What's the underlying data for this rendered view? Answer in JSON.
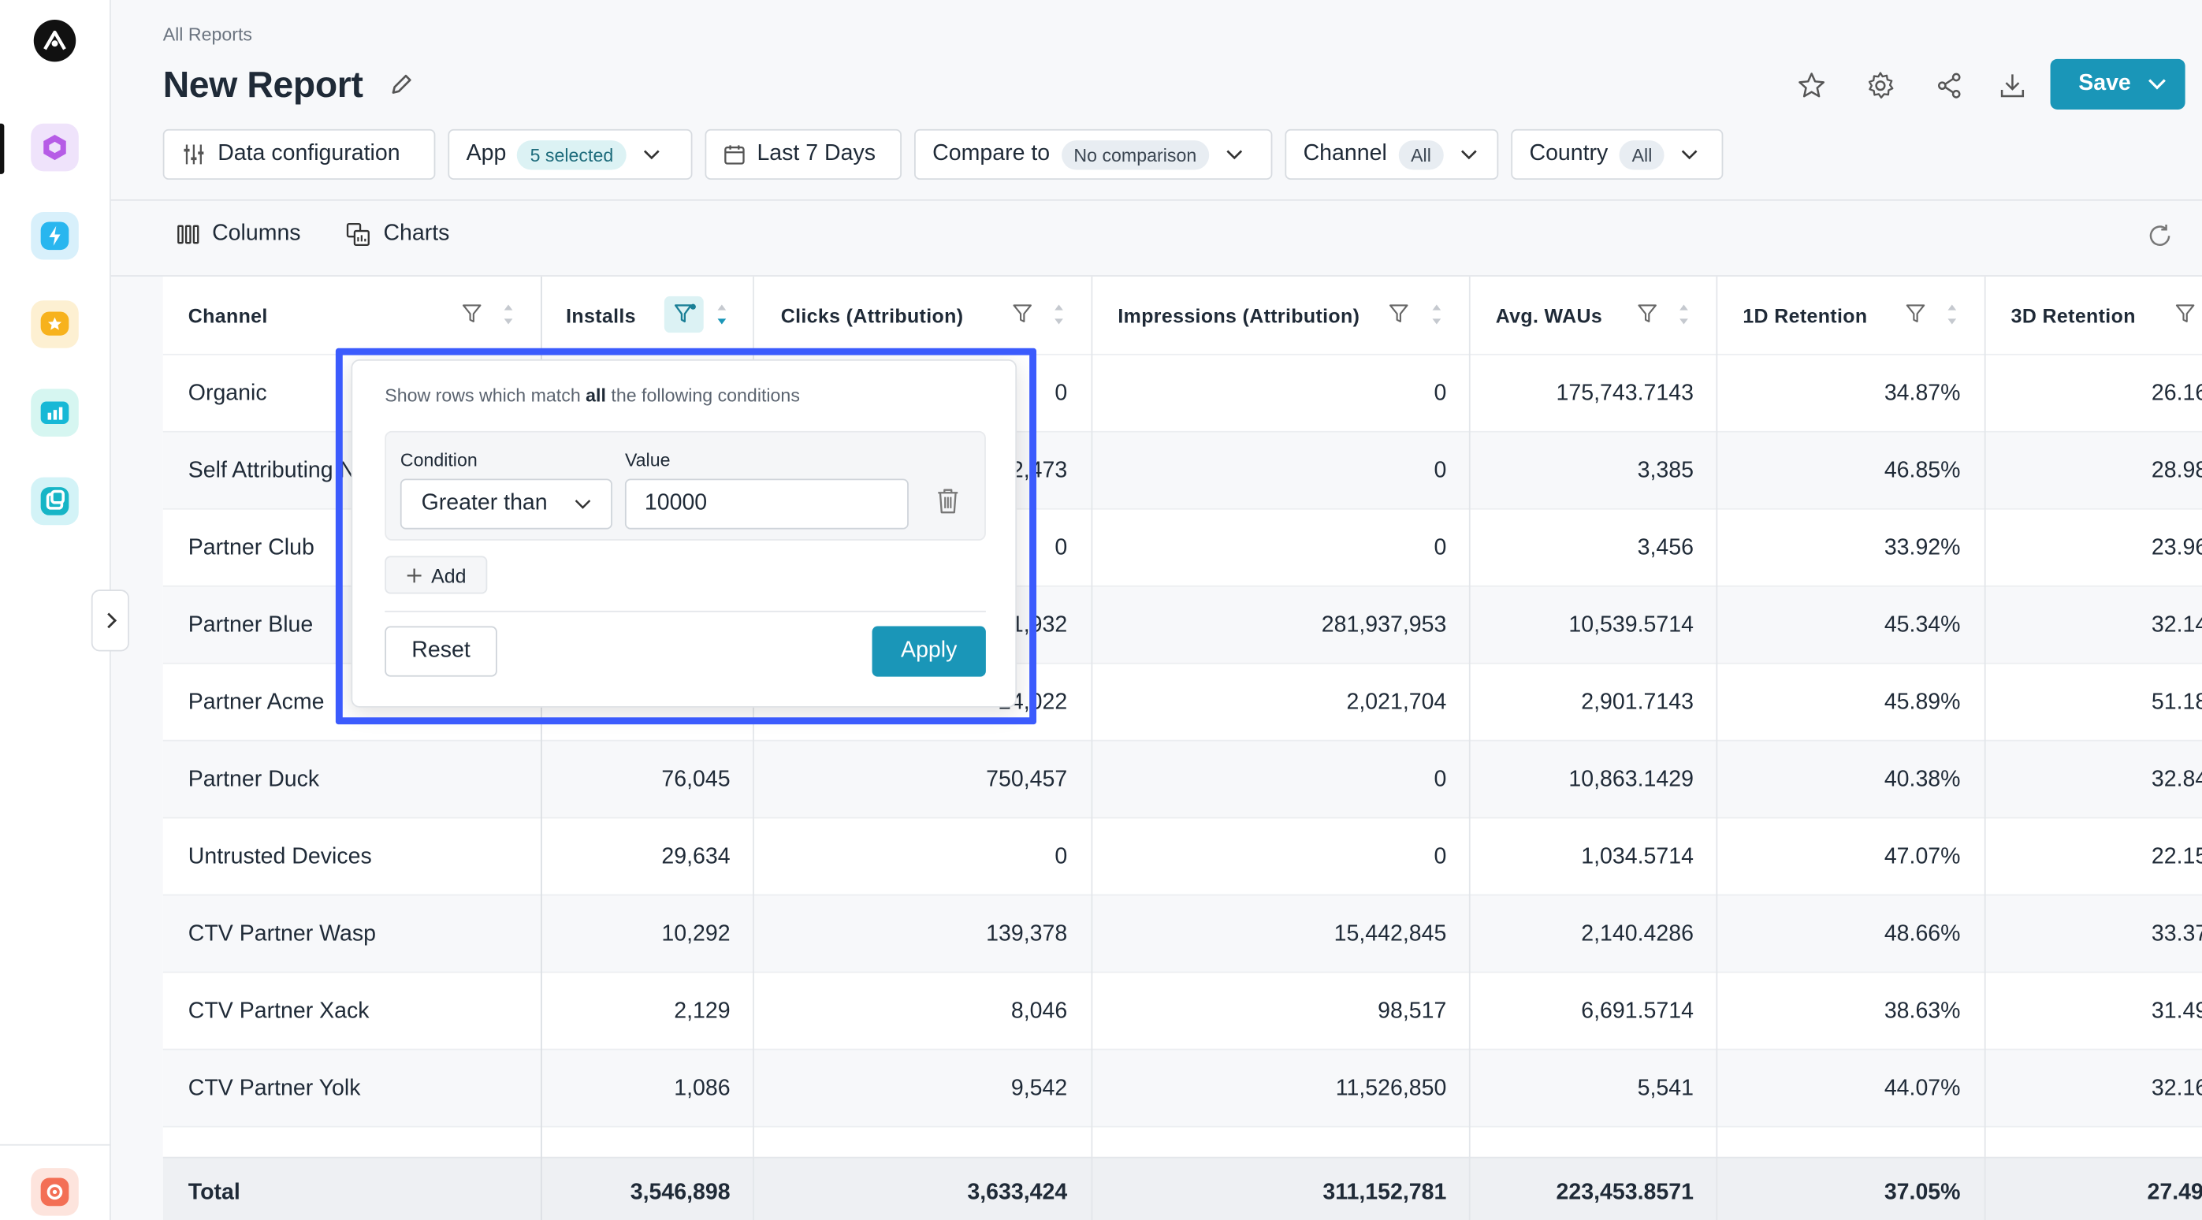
{
  "breadcrumb": "All Reports",
  "title": "New Report",
  "save_label": "Save",
  "filters": {
    "data_config": "Data configuration",
    "app_label": "App",
    "app_value": "5 selected",
    "date_label": "Last 7 Days",
    "compare_label": "Compare to",
    "compare_value": "No comparison",
    "channel_label": "Channel",
    "channel_value": "All",
    "country_label": "Country",
    "country_value": "All"
  },
  "toolbar": {
    "columns": "Columns",
    "charts": "Charts"
  },
  "table": {
    "headers": [
      "Channel",
      "Installs",
      "Clicks (Attribution)",
      "Impressions (Attribution)",
      "Avg. WAUs",
      "1D Retention",
      "3D Retention"
    ],
    "rows": [
      [
        "Organic",
        "",
        "0",
        "0",
        "175,743.7143",
        "34.87%",
        "26.16"
      ],
      [
        "Self Attributing N",
        "",
        "2,473",
        "0",
        "3,385",
        "46.85%",
        "28.98"
      ],
      [
        "Partner Club",
        "",
        "0",
        "0",
        "3,456",
        "33.92%",
        "23.96"
      ],
      [
        "Partner Blue",
        "",
        "1,932",
        "281,937,953",
        "10,539.5714",
        "45.34%",
        "32.14"
      ],
      [
        "Partner Acme",
        "",
        "24,022",
        "2,021,704",
        "2,901.7143",
        "45.89%",
        "51.18"
      ],
      [
        "Partner Duck",
        "76,045",
        "750,457",
        "0",
        "10,863.1429",
        "40.38%",
        "32.84"
      ],
      [
        "Untrusted Devices",
        "29,634",
        "0",
        "0",
        "1,034.5714",
        "47.07%",
        "22.15"
      ],
      [
        "CTV Partner Wasp",
        "10,292",
        "139,378",
        "15,442,845",
        "2,140.4286",
        "48.66%",
        "33.37"
      ],
      [
        "CTV Partner Xack",
        "2,129",
        "8,046",
        "98,517",
        "6,691.5714",
        "38.63%",
        "31.49"
      ],
      [
        "CTV Partner Yolk",
        "1,086",
        "9,542",
        "11,526,850",
        "5,541",
        "44.07%",
        "32.16"
      ]
    ],
    "total": [
      "Total",
      "3,546,898",
      "3,633,424",
      "311,152,781",
      "223,453.8571",
      "37.05%",
      "27.49"
    ]
  },
  "filter_popover": {
    "intro_prefix": "Show rows which match ",
    "intro_bold": "all",
    "intro_suffix": " the following conditions",
    "condition_label": "Condition",
    "value_label": "Value",
    "condition_value": "Greater than",
    "value": "10000",
    "add_label": "Add",
    "reset_label": "Reset",
    "apply_label": "Apply"
  },
  "colors": {
    "accent": "#1a96b8",
    "highlight": "#3b5bfd"
  },
  "rail_icons": [
    "app-logo-icon",
    "hexagon-app-icon",
    "bolt-app-icon",
    "star-app-icon",
    "chart-app-icon",
    "copy-app-icon",
    "settings-app-icon"
  ]
}
